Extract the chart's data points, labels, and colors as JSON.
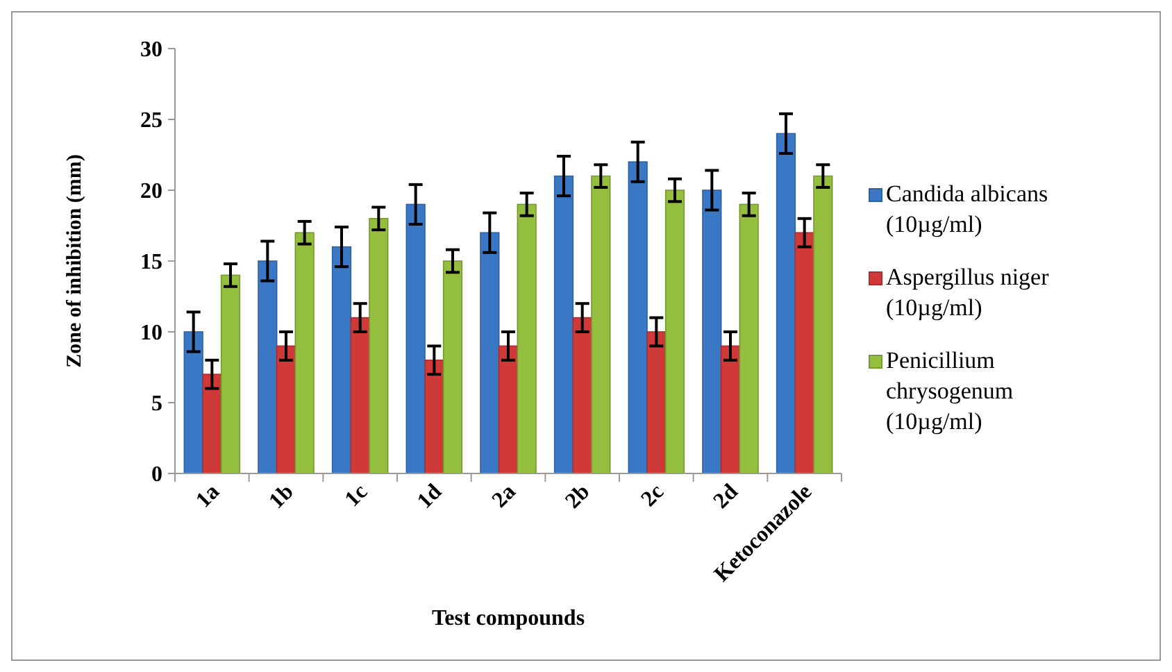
{
  "chart_data": {
    "type": "bar",
    "xlabel": "Test compounds",
    "ylabel": "Zone of inhibition (mm)",
    "categories": [
      "1a",
      "1b",
      "1c",
      "1d",
      "2a",
      "2b",
      "2c",
      "2d",
      "Ketoconazole"
    ],
    "ylim": [
      0,
      30
    ],
    "yticks": [
      0,
      5,
      10,
      15,
      20,
      25,
      30
    ],
    "grid": false,
    "legend": "right",
    "series": [
      {
        "name": "Candida albicans (10µg/ml)",
        "color": "#3a78c6",
        "values": [
          10,
          15,
          16,
          19,
          17,
          21,
          22,
          20,
          24
        ],
        "errors": [
          1.4,
          1.4,
          1.4,
          1.4,
          1.4,
          1.4,
          1.4,
          1.4,
          1.4
        ]
      },
      {
        "name": "Aspergillus niger (10µg/ml)",
        "color": "#cf3a38",
        "values": [
          7,
          9,
          11,
          8,
          9,
          11,
          10,
          9,
          17
        ],
        "errors": [
          1,
          1,
          1,
          1,
          1,
          1,
          1,
          1,
          1
        ]
      },
      {
        "name": "Penicillium chrysogenum (10µg/ml)",
        "color": "#94be3e",
        "values": [
          14,
          17,
          18,
          15,
          19,
          21,
          20,
          19,
          21
        ],
        "errors": [
          0.8,
          0.8,
          0.8,
          0.8,
          0.8,
          0.8,
          0.8,
          0.8,
          0.8
        ]
      }
    ]
  }
}
